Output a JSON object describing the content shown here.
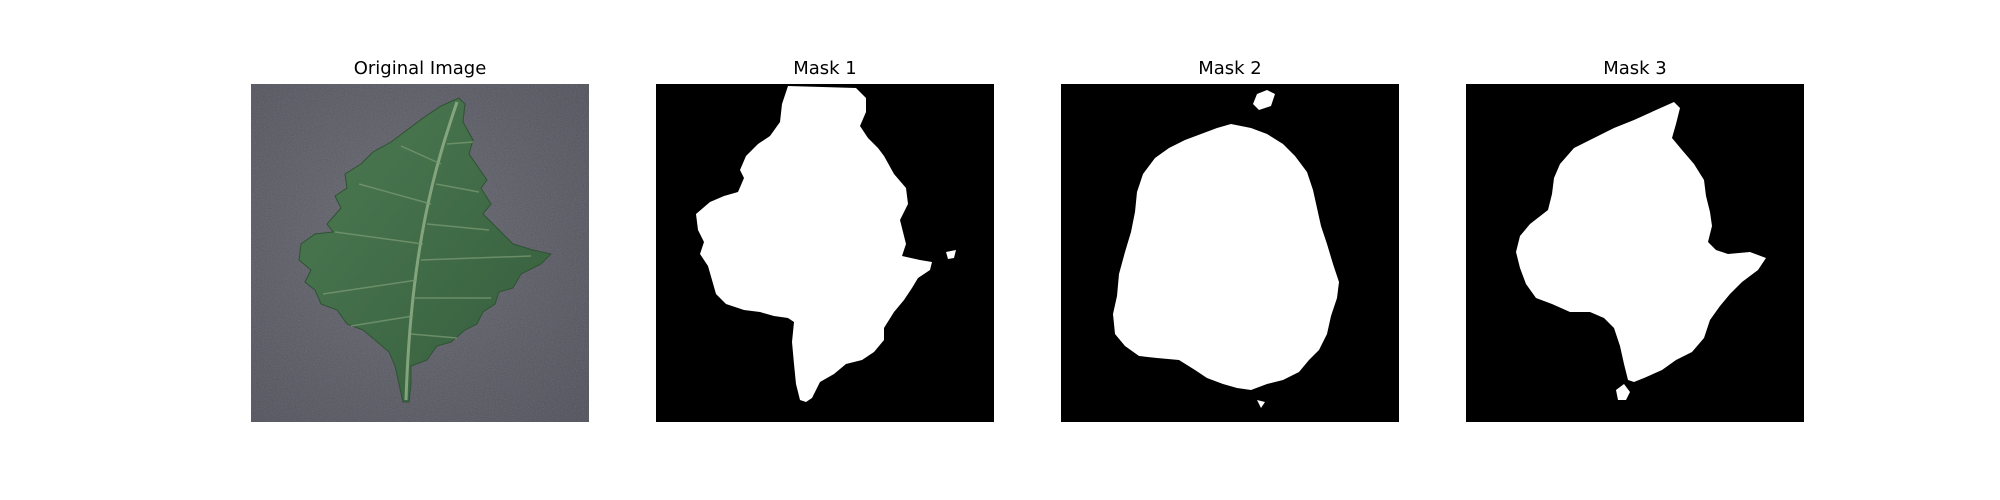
{
  "figure": {
    "panels": [
      {
        "title": "Original Image",
        "kind": "photo"
      },
      {
        "title": "Mask 1",
        "kind": "mask"
      },
      {
        "title": "Mask 2",
        "kind": "mask"
      },
      {
        "title": "Mask 3",
        "kind": "mask"
      }
    ]
  },
  "colors": {
    "mask_background": "#000000",
    "mask_foreground": "#ffffff",
    "photo_background": "#5b5b67",
    "leaf_green": "#3f6b46",
    "leaf_vein": "#7a9a73"
  }
}
